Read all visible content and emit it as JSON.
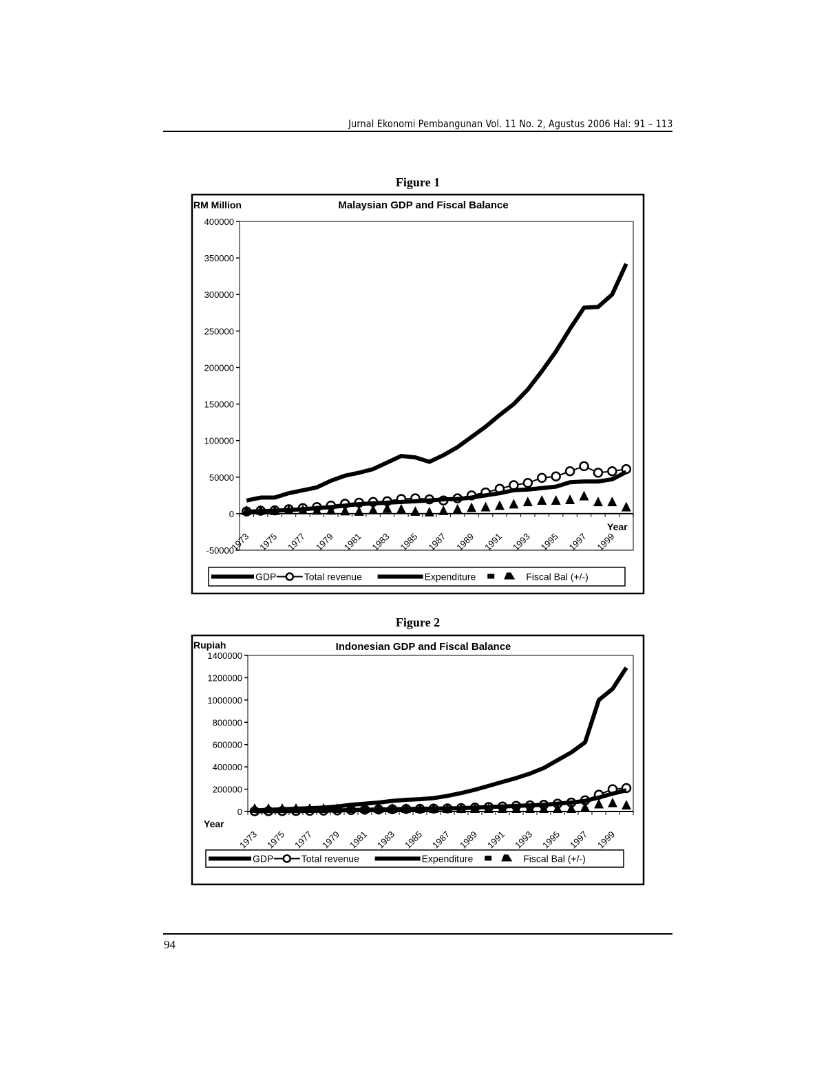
{
  "header": {
    "journal": "Jurnal Ekonomi Pembangunan Vol. 11 No. 2, Agustus 2006 Hal: 91 – 113"
  },
  "footer": {
    "page_number": "94"
  },
  "figures": [
    {
      "label": "Figure 1"
    },
    {
      "label": "Figure 2"
    }
  ],
  "chart_data": [
    {
      "type": "line",
      "title": "Malaysian GDP and Fiscal Balance",
      "ylabel": "RM Million",
      "xlabel": "Year",
      "ylim": [
        -50000,
        400000
      ],
      "yticks": [
        "-50000",
        "0",
        "50000",
        "100000",
        "150000",
        "200000",
        "250000",
        "300000",
        "350000",
        "400000"
      ],
      "ytick_values": [
        -50000,
        0,
        50000,
        100000,
        150000,
        200000,
        250000,
        300000,
        350000,
        400000
      ],
      "x": [
        1973,
        1974,
        1975,
        1976,
        1977,
        1978,
        1979,
        1980,
        1981,
        1982,
        1983,
        1984,
        1985,
        1986,
        1987,
        1988,
        1989,
        1990,
        1991,
        1992,
        1993,
        1994,
        1995,
        1996,
        1997,
        1998,
        1999,
        2000
      ],
      "xtick_labels": [
        "1973",
        "1975",
        "1977",
        "1979",
        "1981",
        "1983",
        "1985",
        "1987",
        "1989",
        "1991",
        "1993",
        "1995",
        "1997",
        "1999"
      ],
      "grid": false,
      "legend": "bottom",
      "series": [
        {
          "name": "GDP",
          "style": "thick-line",
          "values": [
            18000,
            22000,
            22000,
            28000,
            32000,
            36000,
            45000,
            52000,
            56000,
            61000,
            70000,
            79000,
            77000,
            71000,
            80000,
            91000,
            105000,
            119000,
            135000,
            150000,
            170000,
            195000,
            222000,
            253000,
            282000,
            283000,
            300000,
            342000
          ]
        },
        {
          "name": "Total revenue",
          "style": "line-circle",
          "values": [
            3000,
            4000,
            4500,
            6000,
            7500,
            9000,
            11000,
            13500,
            15000,
            16000,
            17000,
            20000,
            21000,
            19500,
            18000,
            21000,
            25000,
            29000,
            34000,
            39000,
            42000,
            49000,
            51000,
            58000,
            65000,
            56000,
            58000,
            61000
          ]
        },
        {
          "name": "Expenditure",
          "style": "thick-line",
          "values": [
            2500,
            3500,
            4000,
            5000,
            6000,
            7500,
            9000,
            11000,
            13000,
            14000,
            15000,
            16000,
            17000,
            18000,
            19500,
            20000,
            22000,
            25000,
            28000,
            32000,
            33000,
            35000,
            37000,
            43000,
            44000,
            44000,
            47000,
            57000
          ]
        },
        {
          "name": "Fiscal Bal (+/-)",
          "style": "triangle",
          "values": [
            0,
            500,
            0,
            1000,
            1000,
            500,
            500,
            -500,
            -1000,
            1000,
            3000,
            2000,
            -1000,
            -2000,
            0,
            2000,
            4000,
            5000,
            7000,
            9000,
            12000,
            14000,
            14000,
            15000,
            20000,
            12000,
            12000,
            5000
          ]
        }
      ]
    },
    {
      "type": "line",
      "title": "Indonesian GDP and Fiscal Balance",
      "ylabel": "Rupiah",
      "xlabel": "Year",
      "ylim": [
        0,
        1400000
      ],
      "yticks": [
        "0",
        "200000",
        "400000",
        "600000",
        "800000",
        "1000000",
        "1200000",
        "1400000"
      ],
      "ytick_values": [
        0,
        200000,
        400000,
        600000,
        800000,
        1000000,
        1200000,
        1400000
      ],
      "x": [
        1973,
        1974,
        1975,
        1976,
        1977,
        1978,
        1979,
        1980,
        1981,
        1982,
        1983,
        1984,
        1985,
        1986,
        1987,
        1988,
        1989,
        1990,
        1991,
        1992,
        1993,
        1994,
        1995,
        1996,
        1997,
        1998,
        1999,
        2000
      ],
      "xtick_labels": [
        "1973",
        "1975",
        "1977",
        "1979",
        "1981",
        "1983",
        "1985",
        "1987",
        "1989",
        "1991",
        "1993",
        "1995",
        "1997",
        "1999"
      ],
      "grid": false,
      "legend": "bottom",
      "series": [
        {
          "name": "GDP",
          "style": "thick-line",
          "values": [
            10000,
            15000,
            20000,
            25000,
            30000,
            35000,
            45000,
            60000,
            70000,
            80000,
            95000,
            105000,
            110000,
            120000,
            140000,
            165000,
            195000,
            230000,
            265000,
            300000,
            340000,
            390000,
            460000,
            530000,
            620000,
            1000000,
            1100000,
            1290000
          ]
        },
        {
          "name": "Total revenue",
          "style": "line-circle",
          "values": [
            2000,
            3000,
            4000,
            5000,
            6000,
            8000,
            10000,
            13000,
            16000,
            18000,
            20000,
            22000,
            24000,
            26000,
            28000,
            30000,
            35000,
            40000,
            45000,
            50000,
            55000,
            60000,
            70000,
            80000,
            100000,
            150000,
            200000,
            210000
          ]
        },
        {
          "name": "Expenditure",
          "style": "thick-line",
          "values": [
            2000,
            3000,
            4000,
            5000,
            6000,
            8000,
            10000,
            13000,
            16000,
            18000,
            20000,
            22000,
            24000,
            26000,
            28000,
            30000,
            35000,
            40000,
            45000,
            50000,
            55000,
            60000,
            70000,
            80000,
            95000,
            125000,
            160000,
            190000
          ]
        },
        {
          "name": "Fiscal Bal (+/-)",
          "style": "triangle",
          "values": [
            0,
            0,
            0,
            0,
            0,
            0,
            0,
            0,
            0,
            0,
            0,
            0,
            0,
            0,
            0,
            0,
            0,
            0,
            0,
            0,
            0,
            0,
            0,
            0,
            10000,
            40000,
            50000,
            30000
          ]
        }
      ]
    }
  ]
}
